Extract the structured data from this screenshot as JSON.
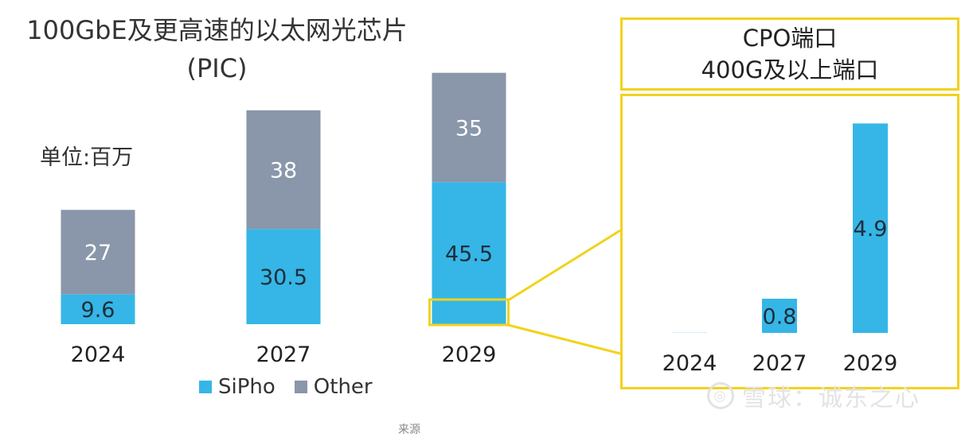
{
  "left_title_line1": "100GbE及更高速的以太网光芯片",
  "left_title_line2": "(PIC)",
  "unit_label": "单位:百万",
  "right_title_line1": "CPO端口",
  "right_title_line2": "400G及以上端口",
  "legend": [
    {
      "name": "SiPho",
      "color": "#35b6e6"
    },
    {
      "name": "Other",
      "color": "#8a96aa"
    }
  ],
  "watermark": "雪球：诚东之心",
  "watermark_logo": "◎",
  "source_note": "来源",
  "colors": {
    "sipho": "#35b6e6",
    "other": "#8a96aa",
    "highlight": "#f2d21b"
  },
  "chart_data": [
    {
      "type": "bar",
      "stacked": true,
      "categories": [
        "2024",
        "2027",
        "2029"
      ],
      "series": [
        {
          "name": "SiPho",
          "values": [
            9.6,
            30.5,
            45.5
          ]
        },
        {
          "name": "Other",
          "values": [
            27,
            38,
            35
          ]
        }
      ],
      "ylim": [
        0,
        80
      ],
      "grid": false,
      "legend_placement": "bottom"
    },
    {
      "type": "bar",
      "categories": [
        "2024",
        "2027",
        "2029"
      ],
      "series": [
        {
          "values": [
            0.0,
            0.8,
            4.9
          ]
        }
      ],
      "value_labels": [
        "",
        "0.8",
        "4.9"
      ],
      "ylim": [
        0,
        5
      ],
      "grid": false
    }
  ]
}
